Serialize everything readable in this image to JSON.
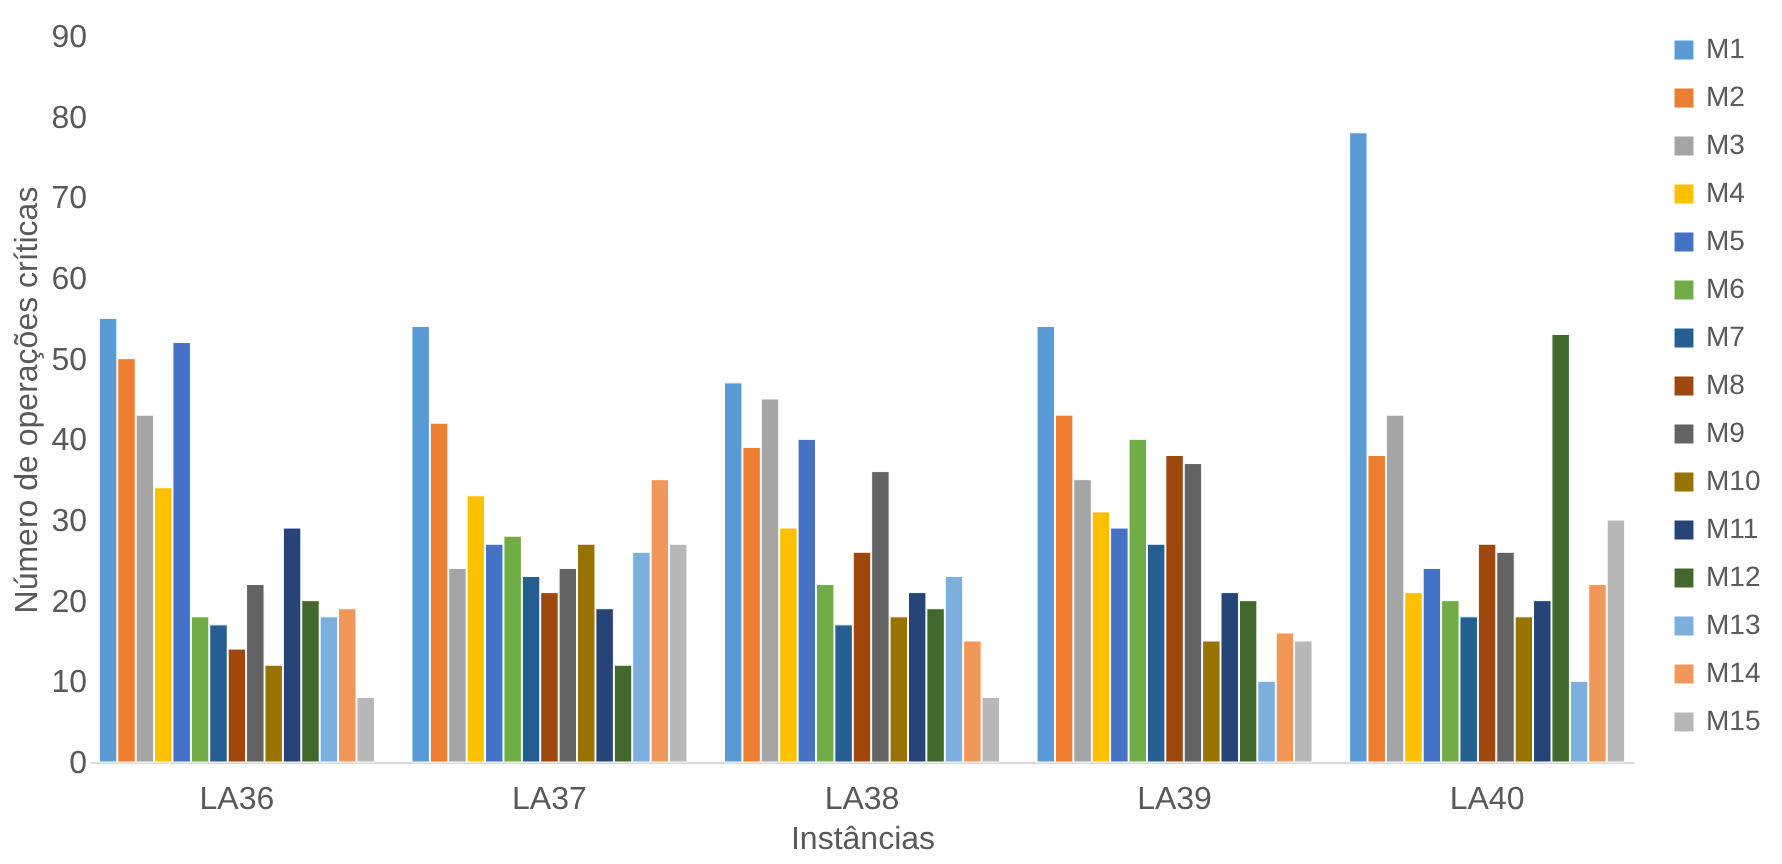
{
  "chart_data": {
    "type": "bar",
    "xlabel": "Instâncias",
    "ylabel": "Número de operações críticas",
    "categories": [
      "LA36",
      "LA37",
      "LA38",
      "LA39",
      "LA40"
    ],
    "ylim": [
      0,
      90
    ],
    "yticks": [
      0,
      10,
      20,
      30,
      40,
      50,
      60,
      70,
      80,
      90
    ],
    "grid": false,
    "legend": "right",
    "series": [
      {
        "name": "M1",
        "color": "#5b9bd5",
        "values": [
          55,
          54,
          47,
          54,
          78
        ]
      },
      {
        "name": "M2",
        "color": "#ed7d31",
        "values": [
          50,
          42,
          39,
          43,
          38
        ]
      },
      {
        "name": "M3",
        "color": "#a5a5a5",
        "values": [
          43,
          24,
          45,
          35,
          43
        ]
      },
      {
        "name": "M4",
        "color": "#ffc000",
        "values": [
          34,
          33,
          29,
          31,
          21
        ]
      },
      {
        "name": "M5",
        "color": "#4472c4",
        "values": [
          52,
          27,
          40,
          29,
          24
        ]
      },
      {
        "name": "M6",
        "color": "#70ad47",
        "values": [
          18,
          28,
          22,
          40,
          20
        ]
      },
      {
        "name": "M7",
        "color": "#255e91",
        "values": [
          17,
          23,
          17,
          27,
          18
        ]
      },
      {
        "name": "M8",
        "color": "#9e480e",
        "values": [
          14,
          21,
          26,
          38,
          27
        ]
      },
      {
        "name": "M9",
        "color": "#636363",
        "values": [
          22,
          24,
          36,
          37,
          26
        ]
      },
      {
        "name": "M10",
        "color": "#997300",
        "values": [
          12,
          27,
          18,
          15,
          18
        ]
      },
      {
        "name": "M11",
        "color": "#264478",
        "values": [
          29,
          19,
          21,
          21,
          20
        ]
      },
      {
        "name": "M12",
        "color": "#43682b",
        "values": [
          20,
          12,
          19,
          20,
          53
        ]
      },
      {
        "name": "M13",
        "color": "#7cafdd",
        "values": [
          18,
          26,
          23,
          10,
          10
        ]
      },
      {
        "name": "M14",
        "color": "#f1975a",
        "values": [
          19,
          35,
          15,
          16,
          22
        ]
      },
      {
        "name": "M15",
        "color": "#b7b7b7",
        "values": [
          8,
          27,
          8,
          15,
          30
        ]
      }
    ]
  }
}
